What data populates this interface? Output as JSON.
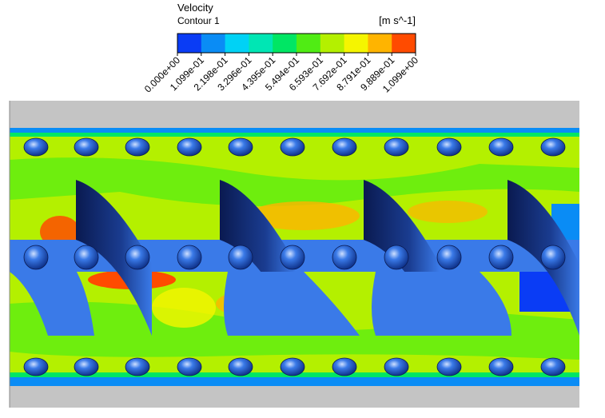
{
  "legend": {
    "title": "Velocity",
    "subtitle": "Contour 1",
    "unit": "[m s^-1]",
    "labels": [
      "0.000e+00",
      "1.099e-01",
      "2.198e-01",
      "3.296e-01",
      "4.395e-01",
      "5.494e-01",
      "6.593e-01",
      "7.692e-01",
      "8.791e-01",
      "9.889e-01",
      "1.099e+00"
    ],
    "colors": [
      "#0a3cf5",
      "#0a8cf5",
      "#00d2f5",
      "#00e6b4",
      "#00e664",
      "#50ec14",
      "#b4f000",
      "#f5f500",
      "#ffb400",
      "#ff4b00"
    ]
  }
}
